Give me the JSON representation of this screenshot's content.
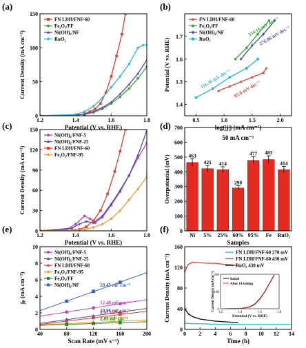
{
  "figure": {
    "panel_labels": [
      "(a)",
      "(b)",
      "(c)",
      "(d)",
      "(e)",
      "(f)"
    ]
  },
  "colors": {
    "red": "#e8392a",
    "green": "#3aa535",
    "purple": "#4848b0",
    "cyan": "#2bb6d2",
    "magenta": "#c040c0",
    "orange": "#f39a2b",
    "darkgreen": "#2a8a2a",
    "blue": "#3a5fcc",
    "bar": "#e42b22"
  },
  "chart_data": [
    {
      "panel": "(a)",
      "type": "line",
      "xlabel": "Potential (V vs. RHE)",
      "ylabel": "Current Density (mA cm⁻²)",
      "xlim": [
        1.2,
        1.8
      ],
      "ylim": [
        0,
        150
      ],
      "xticks": [
        "1.2",
        "1.4",
        "1.6",
        "1.8"
      ],
      "yticks": [
        "0",
        "50",
        "100",
        "150"
      ],
      "legend_position": "top-left",
      "series": [
        {
          "name": "FN LDH/FNF-60",
          "color": "red",
          "marker": "square",
          "x": [
            1.2,
            1.4,
            1.45,
            1.48,
            1.51,
            1.54,
            1.57,
            1.6,
            1.63,
            1.66,
            1.68
          ],
          "y": [
            0,
            0,
            3,
            6,
            10,
            18,
            34,
            58,
            88,
            120,
            150
          ]
        },
        {
          "name": "Fe₂O₃/FF",
          "color": "green",
          "marker": "circle",
          "x": [
            1.2,
            1.45,
            1.5,
            1.55,
            1.6,
            1.65,
            1.7,
            1.75,
            1.8
          ],
          "y": [
            0,
            2,
            5,
            10,
            18,
            28,
            40,
            55,
            72
          ]
        },
        {
          "name": "Ni(OH)₂/NF",
          "color": "purple",
          "marker": "triangle",
          "x": [
            1.2,
            1.45,
            1.5,
            1.55,
            1.6,
            1.65,
            1.7,
            1.75,
            1.8
          ],
          "y": [
            0,
            2,
            6,
            12,
            20,
            32,
            46,
            62,
            82
          ]
        },
        {
          "name": "RuO₂",
          "color": "cyan",
          "marker": "diamond",
          "x": [
            1.2,
            1.4,
            1.45,
            1.5,
            1.55,
            1.6,
            1.65,
            1.7,
            1.75,
            1.78,
            1.8
          ],
          "y": [
            0,
            2,
            6,
            14,
            26,
            42,
            58,
            76,
            100,
            104,
            104
          ]
        }
      ]
    },
    {
      "panel": "(b)",
      "type": "line",
      "xlabel": "log(|j|) (mA cm⁻²)",
      "ylabel": "Potential (V vs. RHE)",
      "xlim": [
        0.3,
        2.2
      ],
      "ylim": [
        1.35,
        1.8
      ],
      "xticks": [
        "0.5",
        "1.0",
        "1.5",
        "2.0"
      ],
      "yticks": [
        "1.4",
        "1.5",
        "1.6",
        "1.7"
      ],
      "legend_position": "top-left",
      "series": [
        {
          "name": "FN LDH/FNF-60",
          "color": "red",
          "marker": "triangle",
          "x": [
            0.9,
            1.1,
            1.3,
            1.5,
            1.7,
            1.75
          ],
          "y": [
            1.46,
            1.48,
            1.5,
            1.52,
            1.54,
            1.56
          ]
        },
        {
          "name": "Fe₂O₃/FF",
          "color": "green",
          "marker": "circle",
          "x": [
            1.2,
            1.4,
            1.6,
            1.8
          ],
          "y": [
            1.6,
            1.65,
            1.71,
            1.77
          ]
        },
        {
          "name": "Ni(OH)₂/NF",
          "color": "purple",
          "marker": "diamond",
          "x": [
            1.3,
            1.5,
            1.7,
            1.9
          ],
          "y": [
            1.6,
            1.66,
            1.71,
            1.77
          ]
        },
        {
          "name": "RuO₂",
          "color": "cyan",
          "marker": "square",
          "x": [
            0.5,
            0.8,
            1.1,
            1.4,
            1.6
          ],
          "y": [
            1.43,
            1.47,
            1.52,
            1.56,
            1.6
          ]
        }
      ],
      "annotations": [
        {
          "text": "85.8 mV dec⁻¹",
          "color": "red",
          "x": 1.2,
          "y": 1.43
        },
        {
          "text": "116.36 mV dec⁻¹",
          "color": "cyan",
          "x": 0.6,
          "y": 1.47
        },
        {
          "text": "276.86 mV dec⁻¹",
          "color": "purple",
          "x": 1.65,
          "y": 1.66
        },
        {
          "text": "334.16 mV dec⁻¹",
          "color": "green",
          "x": 1.45,
          "y": 1.7
        }
      ]
    },
    {
      "panel": "(c)",
      "type": "line",
      "xlabel": "Potential (V vs. RHE)",
      "ylabel": "Current Density (mA cm⁻²)",
      "xlim": [
        1.2,
        1.8
      ],
      "ylim": [
        0,
        150
      ],
      "xticks": [
        "1.2",
        "1.4",
        "1.6",
        "1.8"
      ],
      "yticks": [
        "0",
        "30",
        "60",
        "90",
        "120",
        "150"
      ],
      "legend_position": "top-left",
      "series": [
        {
          "name": "Ni(OH)₂/FNF-5",
          "color": "magenta",
          "marker": "circle",
          "x": [
            1.2,
            1.35,
            1.4,
            1.45,
            1.48,
            1.51,
            1.55,
            1.6,
            1.65,
            1.7,
            1.75,
            1.8
          ],
          "y": [
            0,
            2,
            10,
            22,
            18,
            12,
            20,
            38,
            58,
            82,
            108,
            130
          ]
        },
        {
          "name": "Ni(OH)₂/FNF-25",
          "color": "purple",
          "marker": "triangle",
          "x": [
            1.2,
            1.38,
            1.42,
            1.46,
            1.5,
            1.55,
            1.6,
            1.65,
            1.7,
            1.75,
            1.8
          ],
          "y": [
            0,
            4,
            10,
            14,
            12,
            22,
            40,
            60,
            82,
            112,
            148
          ]
        },
        {
          "name": "FN LDH/FNF-60",
          "color": "red",
          "marker": "square",
          "x": [
            1.2,
            1.42,
            1.46,
            1.5,
            1.54,
            1.58,
            1.62,
            1.65,
            1.68
          ],
          "y": [
            0,
            2,
            6,
            15,
            30,
            55,
            88,
            118,
            150
          ]
        },
        {
          "name": "Fe₂O₃/FNF-95",
          "color": "orange",
          "marker": "diamond",
          "x": [
            1.2,
            1.45,
            1.5,
            1.55,
            1.6,
            1.65,
            1.7,
            1.75,
            1.8
          ],
          "y": [
            0,
            2,
            5,
            10,
            18,
            30,
            46,
            62,
            80
          ]
        }
      ]
    },
    {
      "panel": "(d)",
      "type": "bar",
      "title": "50 mA cm⁻²",
      "xlabel": "Samples",
      "ylabel": "Overpotential (mV)",
      "categories": [
        "Ni",
        "5%",
        "25%",
        "60%",
        "95%",
        "Fe",
        "RuO₂"
      ],
      "values": [
        463,
        421,
        414,
        290,
        477,
        483,
        414
      ],
      "data_labels": [
        "463",
        "421",
        "414",
        "290",
        "477",
        "483",
        "414"
      ],
      "errors": [
        25,
        22,
        20,
        15,
        25,
        25,
        22
      ],
      "ylim": [
        0,
        700
      ],
      "yticks": [
        "0",
        "100",
        "200",
        "300",
        "400",
        "500",
        "600",
        "700"
      ]
    },
    {
      "panel": "(e)",
      "type": "scatter",
      "xlabel": "Scan Rate (mV s⁻¹)",
      "ylabel": "jₚ (mA cm⁻²)",
      "xlim": [
        40,
        200
      ],
      "ylim": [
        0,
        10
      ],
      "xticks": [
        "40",
        "80",
        "120",
        "160",
        "200"
      ],
      "yticks": [
        "0",
        "2",
        "4",
        "6",
        "8",
        "10"
      ],
      "legend_position": "top-left",
      "series": [
        {
          "name": "Ni(OH)₂/FNF-5",
          "color": "magenta",
          "marker": "circle",
          "x": [
            80,
            120,
            160
          ],
          "y": [
            2.1,
            2.6,
            3.1
          ],
          "slope_label": "12.48 mF cm⁻²"
        },
        {
          "name": "Ni(OH)₂/FNF-25",
          "color": "purple",
          "marker": "triangle",
          "x": [
            80,
            120,
            160
          ],
          "y": [
            1.2,
            1.6,
            2.1
          ],
          "slope_label": "10.96 mF cm⁻²"
        },
        {
          "name": "FN LDH/FNF-60",
          "color": "red",
          "marker": "triangle",
          "x": [
            80,
            120,
            160
          ],
          "y": [
            1.0,
            1.4,
            1.8
          ],
          "slope_label": "8.95 mF cm⁻²"
        },
        {
          "name": "Fe₂O₃/FNF-95",
          "color": "orange",
          "marker": "diamond",
          "x": [
            80,
            120,
            160
          ],
          "y": [
            0.7,
            0.85,
            1.0
          ],
          "slope_label": "3.94 mF cm⁻²"
        },
        {
          "name": "Fe₂O₃/FF",
          "color": "darkgreen",
          "marker": "square",
          "x": [
            80,
            120,
            160
          ],
          "y": [
            0.6,
            0.7,
            0.82
          ],
          "slope_label": "2.85 mF cm⁻²"
        },
        {
          "name": "Ni(OH)₂/NF",
          "color": "blue",
          "marker": "square",
          "x": [
            80,
            120,
            160
          ],
          "y": [
            3.4,
            4.6,
            5.7
          ],
          "slope_label": "28.45 mF cm⁻²"
        }
      ]
    },
    {
      "panel": "(f)",
      "type": "line",
      "xlabel": "Time (h)",
      "ylabel": "Current Density (mA cm⁻²)",
      "xlim": [
        0,
        14
      ],
      "ylim": [
        0,
        160
      ],
      "xticks": [
        "0",
        "2",
        "4",
        "6",
        "8",
        "10",
        "12",
        "14"
      ],
      "yticks": [
        "0",
        "40",
        "80",
        "120",
        "160"
      ],
      "legend_position": "top-right",
      "series": [
        {
          "name": "FN LDH/FNF-60 270 mV",
          "color": "cyan",
          "x": [
            0,
            1,
            2,
            4,
            6,
            8,
            10,
            12,
            14
          ],
          "y": [
            12,
            11,
            11,
            10,
            10,
            10,
            10,
            10,
            10
          ]
        },
        {
          "name": "FN LDH/FNF-60 430 mV",
          "color": "red",
          "x": [
            0,
            0.4,
            1,
            2,
            3,
            4,
            5,
            6,
            7
          ],
          "y": [
            110,
            125,
            130,
            129,
            128,
            128,
            126,
            125,
            124
          ]
        },
        {
          "name": "RuO₂ 430 mV",
          "color": "black",
          "x": [
            0,
            0.5,
            1,
            2,
            3,
            4,
            5,
            6,
            7
          ],
          "y": [
            40,
            30,
            25,
            20,
            18,
            16,
            15,
            14,
            13
          ]
        }
      ],
      "inset": {
        "type": "line",
        "xlabel": "Potential (V vs. RHE)",
        "ylabel": "Current Density (mA cm⁻²)",
        "xlim": [
          1.2,
          1.8
        ],
        "ylim": [
          0,
          200
        ],
        "xticks": [
          "1.2",
          "1.4",
          "1.6",
          "1.8"
        ],
        "yticks": [
          "0",
          "100",
          "200"
        ],
        "series": [
          {
            "name": "Initial",
            "color": "black",
            "x": [
              1.2,
              1.4,
              1.45,
              1.5,
              1.55,
              1.6,
              1.65,
              1.7,
              1.75
            ],
            "y": [
              0,
              2,
              5,
              10,
              25,
              55,
              95,
              145,
              195
            ]
          },
          {
            "name": "After 14 testing",
            "color": "red",
            "x": [
              1.2,
              1.4,
              1.45,
              1.5,
              1.55,
              1.6,
              1.65,
              1.7,
              1.75
            ],
            "y": [
              0,
              2,
              6,
              12,
              28,
              58,
              98,
              148,
              198
            ]
          }
        ]
      }
    }
  ]
}
